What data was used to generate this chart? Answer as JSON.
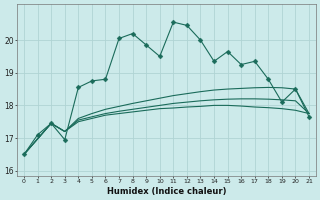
{
  "xlabel": "Humidex (Indice chaleur)",
  "bg_color": "#cceaea",
  "grid_color": "#b0d4d4",
  "line_color": "#1a6b5a",
  "xlim": [
    -0.5,
    21.5
  ],
  "ylim": [
    15.85,
    21.1
  ],
  "yticks": [
    16,
    17,
    18,
    19,
    20
  ],
  "xticks": [
    0,
    1,
    2,
    3,
    4,
    5,
    6,
    7,
    8,
    9,
    10,
    11,
    12,
    13,
    14,
    15,
    16,
    17,
    18,
    19,
    20,
    21
  ],
  "line1_x": [
    0,
    1,
    2,
    3,
    4,
    5,
    6,
    7,
    8,
    9,
    10,
    11,
    12,
    13,
    14,
    15,
    16,
    17,
    18,
    19,
    20,
    21
  ],
  "line1_y": [
    16.5,
    17.1,
    17.45,
    16.95,
    18.55,
    18.75,
    18.8,
    20.05,
    20.2,
    19.85,
    19.5,
    20.55,
    20.45,
    20.0,
    19.35,
    19.65,
    19.25,
    19.35,
    18.8,
    18.1,
    18.5,
    17.65
  ],
  "line2_x": [
    0,
    2,
    3,
    4,
    5,
    6,
    7,
    8,
    9,
    10,
    11,
    12,
    13,
    14,
    15,
    16,
    17,
    18,
    19,
    20,
    21
  ],
  "line2_y": [
    16.5,
    17.45,
    17.2,
    17.5,
    17.6,
    17.7,
    17.75,
    17.8,
    17.85,
    17.9,
    17.92,
    17.95,
    17.97,
    18.0,
    18.0,
    17.98,
    17.95,
    17.93,
    17.9,
    17.85,
    17.75
  ],
  "line3_x": [
    0,
    2,
    3,
    4,
    5,
    6,
    7,
    8,
    9,
    10,
    11,
    12,
    13,
    14,
    15,
    16,
    17,
    18,
    19,
    20,
    21
  ],
  "line3_y": [
    16.5,
    17.45,
    17.2,
    17.55,
    17.65,
    17.75,
    17.82,
    17.88,
    17.94,
    18.0,
    18.06,
    18.1,
    18.14,
    18.17,
    18.19,
    18.2,
    18.2,
    18.19,
    18.17,
    18.14,
    17.75
  ],
  "line4_x": [
    0,
    2,
    3,
    4,
    5,
    6,
    7,
    8,
    9,
    10,
    11,
    12,
    13,
    14,
    15,
    16,
    17,
    18,
    19,
    20,
    21
  ],
  "line4_y": [
    16.5,
    17.45,
    17.2,
    17.6,
    17.75,
    17.88,
    17.97,
    18.06,
    18.14,
    18.22,
    18.3,
    18.36,
    18.42,
    18.47,
    18.5,
    18.52,
    18.54,
    18.55,
    18.54,
    18.5,
    17.75
  ]
}
